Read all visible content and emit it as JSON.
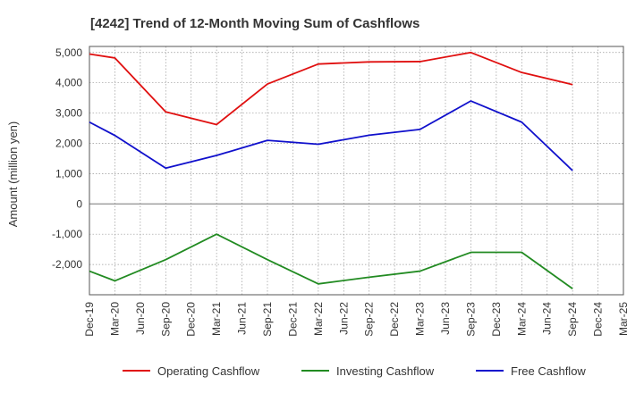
{
  "chart_data": {
    "type": "line",
    "title": "[4242]  Trend of 12-Month Moving Sum of Cashflows",
    "xlabel": "",
    "ylabel": "Amount (million yen)",
    "categories": [
      "Dec-19",
      "Mar-20",
      "Jun-20",
      "Sep-20",
      "Dec-20",
      "Mar-21",
      "Jun-21",
      "Sep-21",
      "Dec-21",
      "Mar-22",
      "Jun-22",
      "Sep-22",
      "Dec-22",
      "Mar-23",
      "Jun-23",
      "Sep-23",
      "Dec-23",
      "Mar-24",
      "Jun-24",
      "Sep-24",
      "Dec-24",
      "Mar-25"
    ],
    "ylim": [
      -3000,
      5200
    ],
    "yticks": [
      5000,
      4000,
      3000,
      2000,
      1000,
      0,
      -1000,
      -2000
    ],
    "ytick_labels": [
      "5,000",
      "4,000",
      "3,000",
      "2,000",
      "1,000",
      "0",
      "-1,000",
      "-2,000"
    ],
    "grid": true,
    "legend_position": "bottom",
    "series": [
      {
        "name": "Operating Cashflow",
        "color": "#e01010",
        "values": [
          4950,
          4820,
          null,
          3040,
          null,
          2620,
          null,
          3960,
          null,
          4620,
          null,
          4690,
          null,
          4700,
          null,
          5000,
          null,
          4340,
          null,
          3940,
          null,
          null
        ]
      },
      {
        "name": "Investing Cashflow",
        "color": "#228b22",
        "values": [
          -2220,
          -2540,
          null,
          -1840,
          null,
          -1000,
          null,
          -1840,
          null,
          -2640,
          null,
          -2420,
          null,
          -2220,
          null,
          -1600,
          null,
          -1600,
          null,
          -2800,
          null,
          null
        ]
      },
      {
        "name": "Free Cashflow",
        "color": "#1010cc",
        "values": [
          2700,
          2260,
          null,
          1180,
          null,
          1600,
          null,
          2100,
          null,
          1970,
          null,
          2270,
          null,
          2460,
          null,
          3400,
          null,
          2700,
          null,
          1100,
          null,
          null
        ]
      }
    ]
  }
}
